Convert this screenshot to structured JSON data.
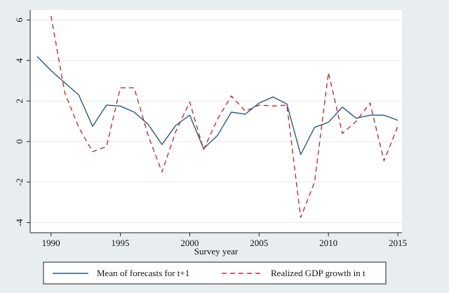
{
  "chart_data": {
    "type": "line",
    "title": "",
    "xlabel": "Survey year",
    "ylabel": "",
    "xlim": [
      1988.5,
      2015.3
    ],
    "ylim": [
      -4.5,
      6.5
    ],
    "xticks": [
      1990,
      1995,
      2000,
      2005,
      2010,
      2015
    ],
    "yticks": [
      -4,
      -2,
      0,
      2,
      4,
      6
    ],
    "grid": true,
    "legend_position": "bottom",
    "colors": {
      "background": "#e8edf0",
      "plot": "#ffffff",
      "grid": "#e4e8ec"
    },
    "series": [
      {
        "name": "Mean of forecasts for t+1",
        "color": "#2a5b7c",
        "style": "solid",
        "x": [
          1989,
          1990,
          1991,
          1992,
          1993,
          1994,
          1995,
          1996,
          1997,
          1998,
          1999,
          2000,
          2001,
          2002,
          2003,
          2004,
          2005,
          2006,
          2007,
          2008,
          2009,
          2010,
          2011,
          2012,
          2013,
          2014,
          2015
        ],
        "y": [
          4.2,
          3.5,
          2.9,
          2.3,
          0.75,
          1.8,
          1.75,
          1.45,
          0.85,
          -0.15,
          0.8,
          1.3,
          -0.35,
          0.3,
          1.45,
          1.35,
          1.9,
          2.2,
          1.85,
          -0.65,
          0.7,
          0.95,
          1.7,
          1.15,
          1.3,
          1.3,
          1.05
        ]
      },
      {
        "name": "Realized GDP growth in t",
        "color": "#b3303a",
        "style": "dashed",
        "x": [
          1990,
          1991,
          1992,
          1993,
          1994,
          1995,
          1996,
          1997,
          1998,
          1999,
          2000,
          2001,
          2002,
          2003,
          2004,
          2005,
          2006,
          2007,
          2008,
          2009,
          2010,
          2011,
          2012,
          2013,
          2014,
          2015
        ],
        "y": [
          6.2,
          2.4,
          0.7,
          -0.5,
          -0.25,
          2.65,
          2.65,
          0.3,
          -1.5,
          0.5,
          1.95,
          -0.4,
          1.1,
          2.25,
          1.5,
          1.8,
          1.75,
          1.8,
          -3.75,
          -2.0,
          3.4,
          0.4,
          1.0,
          1.9,
          -0.95,
          0.75
        ]
      }
    ]
  }
}
